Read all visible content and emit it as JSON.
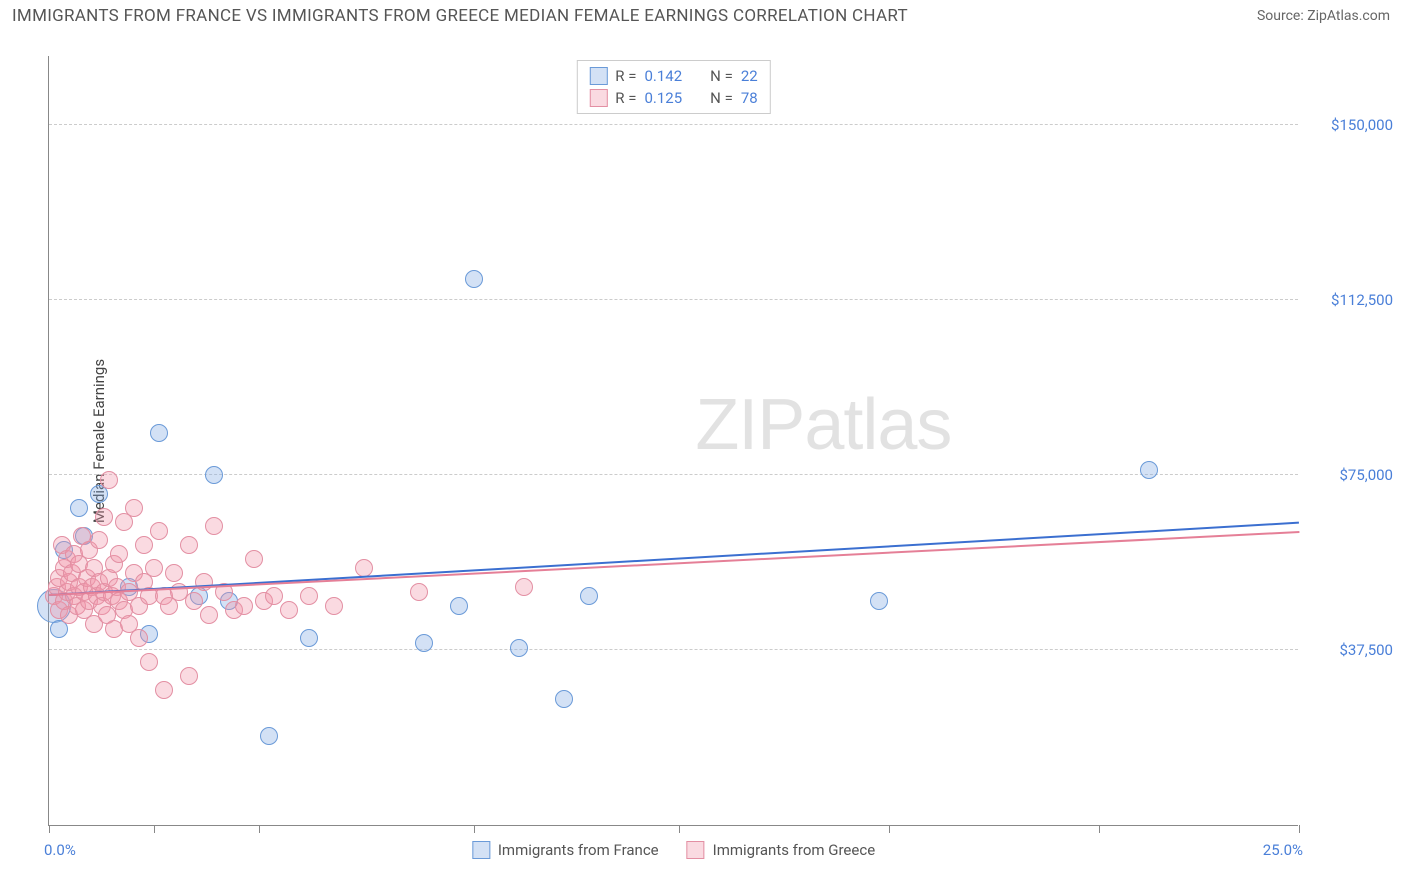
{
  "header": {
    "title": "IMMIGRANTS FROM FRANCE VS IMMIGRANTS FROM GREECE MEDIAN FEMALE EARNINGS CORRELATION CHART",
    "source": "Source: ZipAtlas.com"
  },
  "watermark": {
    "part1": "ZIP",
    "part2": "atlas"
  },
  "chart": {
    "type": "scatter",
    "y_axis_title": "Median Female Earnings",
    "background_color": "#ffffff",
    "grid_color": "#cccccc",
    "axis_color": "#888888",
    "tick_label_color": "#4a7fd8",
    "xlim": [
      0,
      25
    ],
    "ylim": [
      0,
      165000
    ],
    "x_ticks": [
      0,
      2.1,
      4.2,
      8.5,
      12.6,
      16.8,
      21.0,
      25.0
    ],
    "x_tick_labels": {
      "min": "0.0%",
      "max": "25.0%"
    },
    "y_gridlines": [
      {
        "value": 37500,
        "label": "$37,500"
      },
      {
        "value": 75000,
        "label": "$75,000"
      },
      {
        "value": 112500,
        "label": "$112,500"
      },
      {
        "value": 150000,
        "label": "$150,000"
      }
    ],
    "series": [
      {
        "id": "france",
        "label": "Immigrants from France",
        "fill_color": "rgba(130,170,225,0.35)",
        "stroke_color": "#6a9ad8",
        "trend_color": "#3b6fd0",
        "R": "0.142",
        "N": "22",
        "trend": {
          "y_at_x0": 49000,
          "y_at_xmax": 64500
        },
        "marker_radius": 9,
        "points": [
          {
            "x": 0.1,
            "y": 47000,
            "r": 17
          },
          {
            "x": 0.2,
            "y": 42000
          },
          {
            "x": 0.3,
            "y": 59000
          },
          {
            "x": 0.6,
            "y": 68000
          },
          {
            "x": 0.7,
            "y": 62000
          },
          {
            "x": 1.0,
            "y": 71000
          },
          {
            "x": 1.6,
            "y": 51000
          },
          {
            "x": 2.0,
            "y": 41000
          },
          {
            "x": 2.2,
            "y": 84000
          },
          {
            "x": 3.0,
            "y": 49000
          },
          {
            "x": 3.3,
            "y": 75000
          },
          {
            "x": 3.6,
            "y": 48000
          },
          {
            "x": 4.4,
            "y": 19000
          },
          {
            "x": 5.2,
            "y": 40000
          },
          {
            "x": 7.5,
            "y": 39000
          },
          {
            "x": 8.2,
            "y": 47000
          },
          {
            "x": 8.5,
            "y": 117000
          },
          {
            "x": 9.4,
            "y": 38000
          },
          {
            "x": 10.3,
            "y": 27000
          },
          {
            "x": 10.8,
            "y": 49000
          },
          {
            "x": 16.6,
            "y": 48000
          },
          {
            "x": 22.0,
            "y": 76000
          }
        ]
      },
      {
        "id": "greece",
        "label": "Immigrants from Greece",
        "fill_color": "rgba(240,150,170,0.35)",
        "stroke_color": "#e38fa3",
        "trend_color": "#e57f97",
        "R": "0.125",
        "N": "78",
        "trend": {
          "y_at_x0": 49000,
          "y_at_xmax": 62500
        },
        "marker_radius": 9,
        "points": [
          {
            "x": 0.1,
            "y": 49000
          },
          {
            "x": 0.15,
            "y": 51000
          },
          {
            "x": 0.2,
            "y": 46000
          },
          {
            "x": 0.2,
            "y": 53000
          },
          {
            "x": 0.25,
            "y": 60000
          },
          {
            "x": 0.3,
            "y": 48000
          },
          {
            "x": 0.3,
            "y": 55000
          },
          {
            "x": 0.35,
            "y": 50000
          },
          {
            "x": 0.35,
            "y": 57000
          },
          {
            "x": 0.4,
            "y": 45000
          },
          {
            "x": 0.4,
            "y": 52000
          },
          {
            "x": 0.45,
            "y": 54000
          },
          {
            "x": 0.5,
            "y": 49000
          },
          {
            "x": 0.5,
            "y": 58000
          },
          {
            "x": 0.55,
            "y": 47000
          },
          {
            "x": 0.6,
            "y": 51000
          },
          {
            "x": 0.6,
            "y": 56000
          },
          {
            "x": 0.65,
            "y": 62000
          },
          {
            "x": 0.7,
            "y": 50000
          },
          {
            "x": 0.7,
            "y": 46000
          },
          {
            "x": 0.75,
            "y": 53000
          },
          {
            "x": 0.8,
            "y": 48000
          },
          {
            "x": 0.8,
            "y": 59000
          },
          {
            "x": 0.85,
            "y": 51000
          },
          {
            "x": 0.9,
            "y": 55000
          },
          {
            "x": 0.9,
            "y": 43000
          },
          {
            "x": 0.95,
            "y": 49000
          },
          {
            "x": 1.0,
            "y": 52000
          },
          {
            "x": 1.0,
            "y": 61000
          },
          {
            "x": 1.05,
            "y": 47000
          },
          {
            "x": 1.1,
            "y": 50000
          },
          {
            "x": 1.1,
            "y": 66000
          },
          {
            "x": 1.15,
            "y": 45000
          },
          {
            "x": 1.2,
            "y": 53000
          },
          {
            "x": 1.2,
            "y": 74000
          },
          {
            "x": 1.25,
            "y": 49000
          },
          {
            "x": 1.3,
            "y": 56000
          },
          {
            "x": 1.3,
            "y": 42000
          },
          {
            "x": 1.35,
            "y": 51000
          },
          {
            "x": 1.4,
            "y": 48000
          },
          {
            "x": 1.4,
            "y": 58000
          },
          {
            "x": 1.5,
            "y": 46000
          },
          {
            "x": 1.5,
            "y": 65000
          },
          {
            "x": 1.6,
            "y": 50000
          },
          {
            "x": 1.6,
            "y": 43000
          },
          {
            "x": 1.7,
            "y": 54000
          },
          {
            "x": 1.7,
            "y": 68000
          },
          {
            "x": 1.8,
            "y": 47000
          },
          {
            "x": 1.8,
            "y": 40000
          },
          {
            "x": 1.9,
            "y": 52000
          },
          {
            "x": 1.9,
            "y": 60000
          },
          {
            "x": 2.0,
            "y": 49000
          },
          {
            "x": 2.0,
            "y": 35000
          },
          {
            "x": 2.1,
            "y": 55000
          },
          {
            "x": 2.2,
            "y": 63000
          },
          {
            "x": 2.3,
            "y": 29000
          },
          {
            "x": 2.3,
            "y": 49000
          },
          {
            "x": 2.4,
            "y": 47000
          },
          {
            "x": 2.5,
            "y": 54000
          },
          {
            "x": 2.6,
            "y": 50000
          },
          {
            "x": 2.8,
            "y": 32000
          },
          {
            "x": 2.8,
            "y": 60000
          },
          {
            "x": 2.9,
            "y": 48000
          },
          {
            "x": 3.1,
            "y": 52000
          },
          {
            "x": 3.2,
            "y": 45000
          },
          {
            "x": 3.3,
            "y": 64000
          },
          {
            "x": 3.5,
            "y": 50000
          },
          {
            "x": 3.7,
            "y": 46000
          },
          {
            "x": 3.9,
            "y": 47000
          },
          {
            "x": 4.1,
            "y": 57000
          },
          {
            "x": 4.3,
            "y": 48000
          },
          {
            "x": 4.5,
            "y": 49000
          },
          {
            "x": 4.8,
            "y": 46000
          },
          {
            "x": 5.2,
            "y": 49000
          },
          {
            "x": 5.7,
            "y": 47000
          },
          {
            "x": 6.3,
            "y": 55000
          },
          {
            "x": 7.4,
            "y": 50000
          },
          {
            "x": 9.5,
            "y": 51000
          }
        ]
      }
    ]
  }
}
